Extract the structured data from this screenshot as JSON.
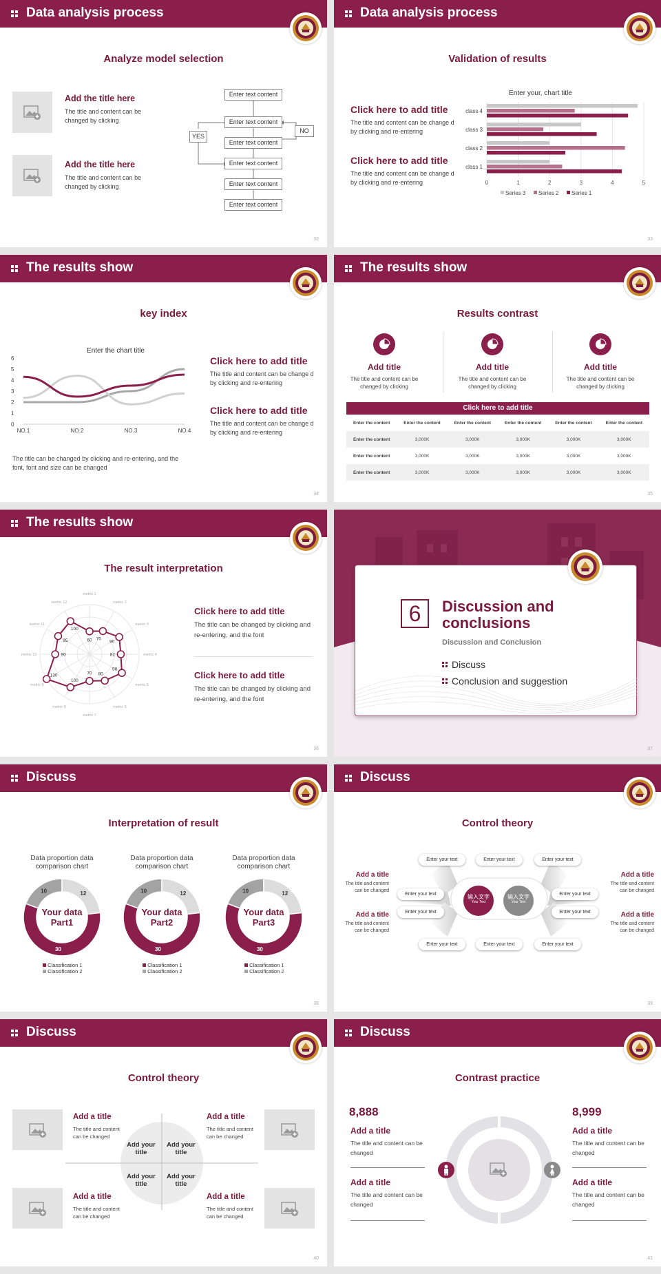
{
  "colors": {
    "brand": "#8b1f4b",
    "accent": "#a84c6e",
    "light": "#c9a4b3",
    "grey": "#cfcfcf"
  },
  "slides": [
    {
      "header": "Data analysis process",
      "subtitle": "Analyze model selection",
      "page": "32",
      "items": [
        {
          "title": "Add the title here",
          "body": "The title and content can be changed by clicking"
        },
        {
          "title": "Add the title here",
          "body": "The title and content can be changed by clicking"
        }
      ],
      "flow": {
        "boxes": [
          "Enter text content",
          "Enter text content",
          "Enter text content",
          "Enter text content",
          "Enter text content",
          "Enter text content"
        ],
        "yes": "YES",
        "no": "NO"
      }
    },
    {
      "header": "Data analysis process",
      "subtitle": "Validation of results",
      "page": "33",
      "items": [
        {
          "title": "Click here to add title",
          "body": "The title and content can be change d by clicking and re-entering"
        },
        {
          "title": "Click here to add title",
          "body": "The title and content can be change d by clicking and re-entering"
        }
      ]
    },
    {
      "header": "The results show",
      "subtitle": "key index",
      "page": "34",
      "items": [
        {
          "title": "Click here to add title",
          "body": "The title and content can be change d by clicking and re-entering"
        },
        {
          "title": "Click here to add title",
          "body": "The title and content can be change d by clicking and re-entering"
        }
      ],
      "note": "The title can be changed by clicking and re-entering, and the font, font and size can be changed"
    },
    {
      "header": "The results show",
      "subtitle": "Results contrast",
      "page": "35",
      "cols": [
        {
          "title": "Add title",
          "body": "The title and content can be changed by clicking"
        },
        {
          "title": "Add title",
          "body": "The title and content can be changed by clicking"
        },
        {
          "title": "Add title",
          "body": "The title and content can be changed by clicking"
        }
      ],
      "table": {
        "caption": "Click here to add title",
        "head": [
          "Enter the content",
          "Enter the content",
          "Enter the content",
          "Enter the content",
          "Enter the content",
          "Enter the content"
        ],
        "rows": [
          [
            "Enter the content",
            "3,000K",
            "3,000K",
            "3,000K",
            "3,000K",
            "3,000K"
          ],
          [
            "Enter the content",
            "3,000K",
            "3,000K",
            "3,000K",
            "3,000K",
            "3,000K"
          ],
          [
            "Enter the content",
            "3,000K",
            "3,000K",
            "3,000K",
            "3,000K",
            "3,000K"
          ]
        ]
      }
    },
    {
      "header": "The results show",
      "subtitle": "The result interpretation",
      "page": "36",
      "items": [
        {
          "title": "Click here to add  title",
          "body": "The title can be changed by clicking and re-entering, and the font"
        },
        {
          "title": "Click here to add  title",
          "body": "The title can be changed by clicking and re-entering, and the font"
        }
      ]
    },
    {
      "number": "6",
      "title1": "Discussion and",
      "title2": "conclusions",
      "subtitle": "Discussion and Conclusion",
      "bullets": [
        "Discuss",
        "Conclusion and suggestion"
      ],
      "page": "37"
    },
    {
      "header": "Discuss",
      "subtitle": "Interpretation of result",
      "page": "38",
      "donuts": [
        {
          "title": "Data proportion data comparison chart",
          "center": [
            "Your data",
            "Part1"
          ]
        },
        {
          "title": "Data proportion data comparison chart",
          "center": [
            "Your data",
            "Part2"
          ]
        },
        {
          "title": "Data proportion data comparison chart",
          "center": [
            "Your data",
            "Part3"
          ]
        }
      ],
      "legend": [
        "Classification 1",
        "Classification 2"
      ]
    },
    {
      "header": "Discuss",
      "subtitle": "Control theory",
      "page": "39",
      "left": [
        {
          "title": "Add a title",
          "body": "The title and content can be changed"
        },
        {
          "title": "Add a title",
          "body": "The title and content can be changed"
        }
      ],
      "right": [
        {
          "title": "Add a title",
          "body": "The title and content can be changed"
        },
        {
          "title": "Add a title",
          "body": "The title and content can be changed"
        }
      ],
      "pill": "Enter your text",
      "center": {
        "cn": "输入文字",
        "en": "Your Text"
      }
    },
    {
      "header": "Discuss",
      "subtitle": "Control theory",
      "page": "40",
      "items": [
        {
          "title": "Add a title",
          "body": "The title and content can be changed"
        },
        {
          "title": "Add a title",
          "body": "The title and content can be changed"
        },
        {
          "title": "Add a title",
          "body": "The title and content can be changed"
        },
        {
          "title": "Add a title",
          "body": "The title and content can be changed"
        }
      ],
      "quad": [
        "Add your title",
        "Add your title",
        "Add your title",
        "Add your title"
      ]
    },
    {
      "header": "Discuss",
      "subtitle": "Contrast practice",
      "page": "41",
      "left": {
        "number": "8,888",
        "items": [
          {
            "title": "Add a title",
            "body": "The title and content can be changed"
          },
          {
            "title": "Add a title",
            "body": "The title and content can be changed"
          }
        ]
      },
      "right": {
        "number": "8,999",
        "items": [
          {
            "title": "Add a title",
            "body": "The title and content can be changed"
          },
          {
            "title": "Add a title",
            "body": "The title and content can be changed"
          }
        ]
      }
    }
  ],
  "chart_data": [
    {
      "type": "bar",
      "title": "Enter your, chart title",
      "orientation": "horizontal",
      "categories": [
        "class 1",
        "class 2",
        "class 3",
        "class 4"
      ],
      "series": [
        {
          "name": "Series 3",
          "values": [
            2.0,
            2.0,
            3.0,
            4.8
          ],
          "color": "#c8c8c8"
        },
        {
          "name": "Series 2",
          "values": [
            2.4,
            4.4,
            1.8,
            2.8
          ],
          "color": "#b5708c"
        },
        {
          "name": "Series 1",
          "values": [
            4.3,
            2.5,
            3.5,
            4.5
          ],
          "color": "#8b1f4b"
        }
      ],
      "xlim": [
        0,
        5
      ],
      "xticks": [
        "0",
        "1",
        "2",
        "3",
        "4",
        "5"
      ]
    },
    {
      "type": "line",
      "title": "Enter the chart title",
      "categories": [
        "NO.1",
        "NO.2",
        "NO.3",
        "NO.4"
      ],
      "series": [
        {
          "values": [
            4.3,
            2.5,
            3.5,
            4.5
          ],
          "color": "#8b1f4b"
        },
        {
          "values": [
            2.4,
            4.4,
            1.8,
            2.8
          ],
          "color": "#d0d0d0"
        },
        {
          "values": [
            2.0,
            2.0,
            3.0,
            5.0
          ],
          "color": "#a8a8a8"
        }
      ],
      "ylim": [
        0,
        6
      ],
      "yticks": [
        "0",
        "1",
        "2",
        "3",
        "4",
        "5",
        "6"
      ]
    },
    {
      "type": "radar",
      "axes": [
        "metric 1",
        "metric 2",
        "metric 3",
        "metric 4",
        "metric 5",
        "metric 6",
        "metric 7",
        "metric 8",
        "metric 9",
        "metric 10",
        "metric 11",
        "metric 12"
      ],
      "values": [
        60,
        70,
        90,
        82,
        98,
        80,
        70,
        100,
        130,
        90,
        95,
        100
      ],
      "max": 130
    },
    {
      "type": "pie",
      "labels": [
        "30",
        "10",
        "12"
      ],
      "values": [
        30,
        10,
        12
      ],
      "colors": [
        "#8b1f4b",
        "#a3a3a3",
        "#dcdcdc"
      ]
    },
    {
      "type": "pie",
      "labels": [
        "30",
        "10",
        "12"
      ],
      "values": [
        30,
        10,
        12
      ],
      "colors": [
        "#8b1f4b",
        "#a3a3a3",
        "#dcdcdc"
      ]
    },
    {
      "type": "pie",
      "labels": [
        "30",
        "10",
        "12"
      ],
      "values": [
        30,
        10,
        12
      ],
      "colors": [
        "#8b1f4b",
        "#a3a3a3",
        "#dcdcdc"
      ]
    }
  ]
}
